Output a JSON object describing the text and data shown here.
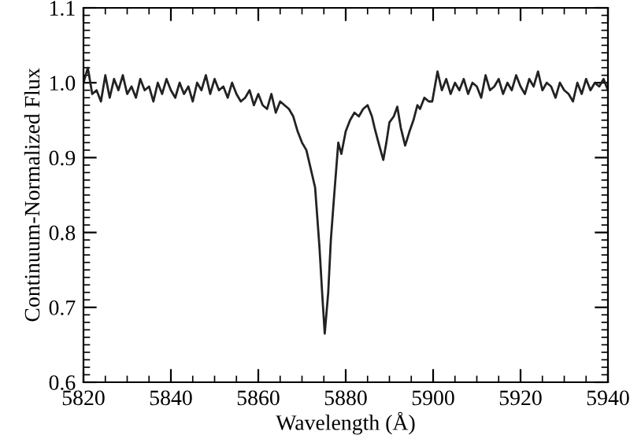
{
  "chart_data": {
    "type": "line",
    "xlabel": "Wavelength (Å)",
    "ylabel": "Continuum-Normalized Flux",
    "x": [
      5820,
      5821,
      5822,
      5823,
      5824,
      5825,
      5826,
      5827,
      5828,
      5829,
      5830,
      5831,
      5832,
      5833,
      5834,
      5835,
      5836,
      5837,
      5838,
      5839,
      5840,
      5841,
      5842,
      5843,
      5844,
      5845,
      5846,
      5847,
      5848,
      5849,
      5850,
      5851,
      5852,
      5853,
      5854,
      5855,
      5856,
      5857,
      5858,
      5859,
      5860,
      5861,
      5862,
      5863,
      5864,
      5865,
      5866,
      5867,
      5868,
      5869,
      5870,
      5871,
      5872,
      5873,
      5874,
      5874.6,
      5875.2,
      5876,
      5876.6,
      5877.3,
      5878.3,
      5879,
      5880,
      5881,
      5882,
      5883,
      5884,
      5885,
      5886,
      5886.6,
      5887.5,
      5888.6,
      5889.3,
      5890,
      5891,
      5891.8,
      5892.6,
      5893.6,
      5894.6,
      5895.5,
      5896.4,
      5897,
      5898,
      5899,
      5899.8,
      5901,
      5902,
      5903,
      5904,
      5905,
      5906,
      5907,
      5908,
      5909,
      5910,
      5911,
      5912,
      5913,
      5914,
      5915,
      5916,
      5917,
      5918,
      5919,
      5920,
      5921,
      5922,
      5923,
      5924,
      5925,
      5926,
      5927,
      5928,
      5929,
      5930,
      5931,
      5932,
      5933,
      5934,
      5935,
      5936,
      5937,
      5938,
      5939,
      5940
    ],
    "values": [
      1.0,
      1.02,
      0.985,
      0.99,
      0.975,
      1.01,
      0.98,
      1.005,
      0.99,
      1.01,
      0.985,
      0.995,
      0.98,
      1.005,
      0.99,
      0.995,
      0.975,
      1.0,
      0.985,
      1.005,
      0.99,
      0.98,
      1.0,
      0.985,
      0.995,
      0.975,
      1.0,
      0.99,
      1.01,
      0.985,
      1.005,
      0.99,
      0.995,
      0.98,
      1.0,
      0.985,
      0.975,
      0.98,
      0.99,
      0.97,
      0.985,
      0.97,
      0.965,
      0.985,
      0.96,
      0.975,
      0.97,
      0.965,
      0.955,
      0.935,
      0.92,
      0.91,
      0.885,
      0.86,
      0.78,
      0.72,
      0.665,
      0.72,
      0.79,
      0.845,
      0.92,
      0.905,
      0.935,
      0.95,
      0.96,
      0.955,
      0.965,
      0.97,
      0.955,
      0.94,
      0.92,
      0.897,
      0.92,
      0.947,
      0.955,
      0.968,
      0.94,
      0.916,
      0.935,
      0.95,
      0.97,
      0.965,
      0.98,
      0.975,
      0.975,
      1.015,
      0.99,
      1.005,
      0.985,
      1.0,
      0.99,
      1.005,
      0.985,
      1.0,
      0.995,
      0.98,
      1.01,
      0.99,
      0.995,
      1.005,
      0.985,
      1.0,
      0.99,
      1.01,
      0.995,
      0.985,
      1.005,
      0.995,
      1.015,
      0.99,
      1.0,
      0.995,
      0.98,
      1.0,
      0.99,
      0.985,
      0.975,
      1.0,
      0.985,
      1.005,
      0.99,
      1.0,
      0.995,
      1.005,
      0.99
    ],
    "color": "#222222",
    "xlim": [
      5820,
      5940
    ],
    "ylim": [
      0.6,
      1.1
    ],
    "xticks": [
      5820,
      5840,
      5860,
      5880,
      5900,
      5920,
      5940
    ],
    "yticks": [
      {
        "value": 0.6,
        "label": "0.6"
      },
      {
        "value": 0.7,
        "label": "0.7"
      },
      {
        "value": 0.8,
        "label": "0.8"
      },
      {
        "value": 0.9,
        "label": "0.9"
      },
      {
        "value": 1.0,
        "label": "1.0"
      },
      {
        "value": 1.1,
        "label": "1.1"
      }
    ],
    "grid": false,
    "legend": false,
    "marker": "none",
    "line_style": "solid"
  }
}
